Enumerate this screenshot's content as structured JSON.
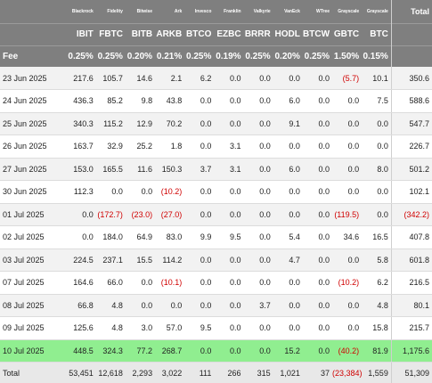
{
  "table": {
    "issuers": [
      "Blackrock",
      "Fidelity",
      "Bitwise",
      "Ark",
      "Invesco",
      "Franklin",
      "Valkyrie",
      "VanEck",
      "WTree",
      "Grayscale",
      "Grayscale"
    ],
    "total_label": "Total",
    "tickers": [
      "IBIT",
      "FBTC",
      "BITB",
      "ARKB",
      "BTCO",
      "EZBC",
      "BRRR",
      "HODL",
      "BTCW",
      "GBTC",
      "BTC"
    ],
    "fee_label": "Fee",
    "fees": [
      "0.25%",
      "0.25%",
      "0.20%",
      "0.21%",
      "0.25%",
      "0.19%",
      "0.25%",
      "0.20%",
      "0.25%",
      "1.50%",
      "0.15%"
    ],
    "rows": [
      {
        "date": "23 Jun 2025",
        "values": [
          "217.6",
          "105.7",
          "14.6",
          "2.1",
          "6.2",
          "0.0",
          "0.0",
          "0.0",
          "0.0",
          "(5.7)",
          "10.1"
        ],
        "total": "350.6"
      },
      {
        "date": "24 Jun 2025",
        "values": [
          "436.3",
          "85.2",
          "9.8",
          "43.8",
          "0.0",
          "0.0",
          "0.0",
          "6.0",
          "0.0",
          "0.0",
          "7.5"
        ],
        "total": "588.6"
      },
      {
        "date": "25 Jun 2025",
        "values": [
          "340.3",
          "115.2",
          "12.9",
          "70.2",
          "0.0",
          "0.0",
          "0.0",
          "9.1",
          "0.0",
          "0.0",
          "0.0"
        ],
        "total": "547.7"
      },
      {
        "date": "26 Jun 2025",
        "values": [
          "163.7",
          "32.9",
          "25.2",
          "1.8",
          "0.0",
          "3.1",
          "0.0",
          "0.0",
          "0.0",
          "0.0",
          "0.0"
        ],
        "total": "226.7"
      },
      {
        "date": "27 Jun 2025",
        "values": [
          "153.0",
          "165.5",
          "11.6",
          "150.3",
          "3.7",
          "3.1",
          "0.0",
          "6.0",
          "0.0",
          "0.0",
          "8.0"
        ],
        "total": "501.2"
      },
      {
        "date": "30 Jun 2025",
        "values": [
          "112.3",
          "0.0",
          "0.0",
          "(10.2)",
          "0.0",
          "0.0",
          "0.0",
          "0.0",
          "0.0",
          "0.0",
          "0.0"
        ],
        "total": "102.1"
      },
      {
        "date": "01 Jul 2025",
        "values": [
          "0.0",
          "(172.7)",
          "(23.0)",
          "(27.0)",
          "0.0",
          "0.0",
          "0.0",
          "0.0",
          "0.0",
          "(119.5)",
          "0.0"
        ],
        "total": "(342.2)"
      },
      {
        "date": "02 Jul 2025",
        "values": [
          "0.0",
          "184.0",
          "64.9",
          "83.0",
          "9.9",
          "9.5",
          "0.0",
          "5.4",
          "0.0",
          "34.6",
          "16.5"
        ],
        "total": "407.8"
      },
      {
        "date": "03 Jul 2025",
        "values": [
          "224.5",
          "237.1",
          "15.5",
          "114.2",
          "0.0",
          "0.0",
          "0.0",
          "4.7",
          "0.0",
          "0.0",
          "5.8"
        ],
        "total": "601.8"
      },
      {
        "date": "07 Jul 2025",
        "values": [
          "164.6",
          "66.0",
          "0.0",
          "(10.1)",
          "0.0",
          "0.0",
          "0.0",
          "0.0",
          "0.0",
          "(10.2)",
          "6.2"
        ],
        "total": "216.5"
      },
      {
        "date": "08 Jul 2025",
        "values": [
          "66.8",
          "4.8",
          "0.0",
          "0.0",
          "0.0",
          "0.0",
          "3.7",
          "0.0",
          "0.0",
          "0.0",
          "4.8"
        ],
        "total": "80.1"
      },
      {
        "date": "09 Jul 2025",
        "values": [
          "125.6",
          "4.8",
          "3.0",
          "57.0",
          "9.5",
          "0.0",
          "0.0",
          "0.0",
          "0.0",
          "0.0",
          "15.8"
        ],
        "total": "215.7"
      },
      {
        "date": "10 Jul 2025",
        "values": [
          "448.5",
          "324.3",
          "77.2",
          "268.7",
          "0.0",
          "0.0",
          "0.0",
          "15.2",
          "0.0",
          "(40.2)",
          "81.9"
        ],
        "total": "1,175.6"
      }
    ],
    "totals_label": "Total",
    "totals": [
      "53,451",
      "12,618",
      "2,293",
      "3,022",
      "111",
      "266",
      "315",
      "1,021",
      "37",
      "(23,384)",
      "1,559"
    ],
    "grand_total": "51,309"
  },
  "colors": {
    "header_bg": "#7f7f7f",
    "negative": "#d00000",
    "highlight_row": "#90ee90",
    "alt_row": "#f2f2f2"
  }
}
